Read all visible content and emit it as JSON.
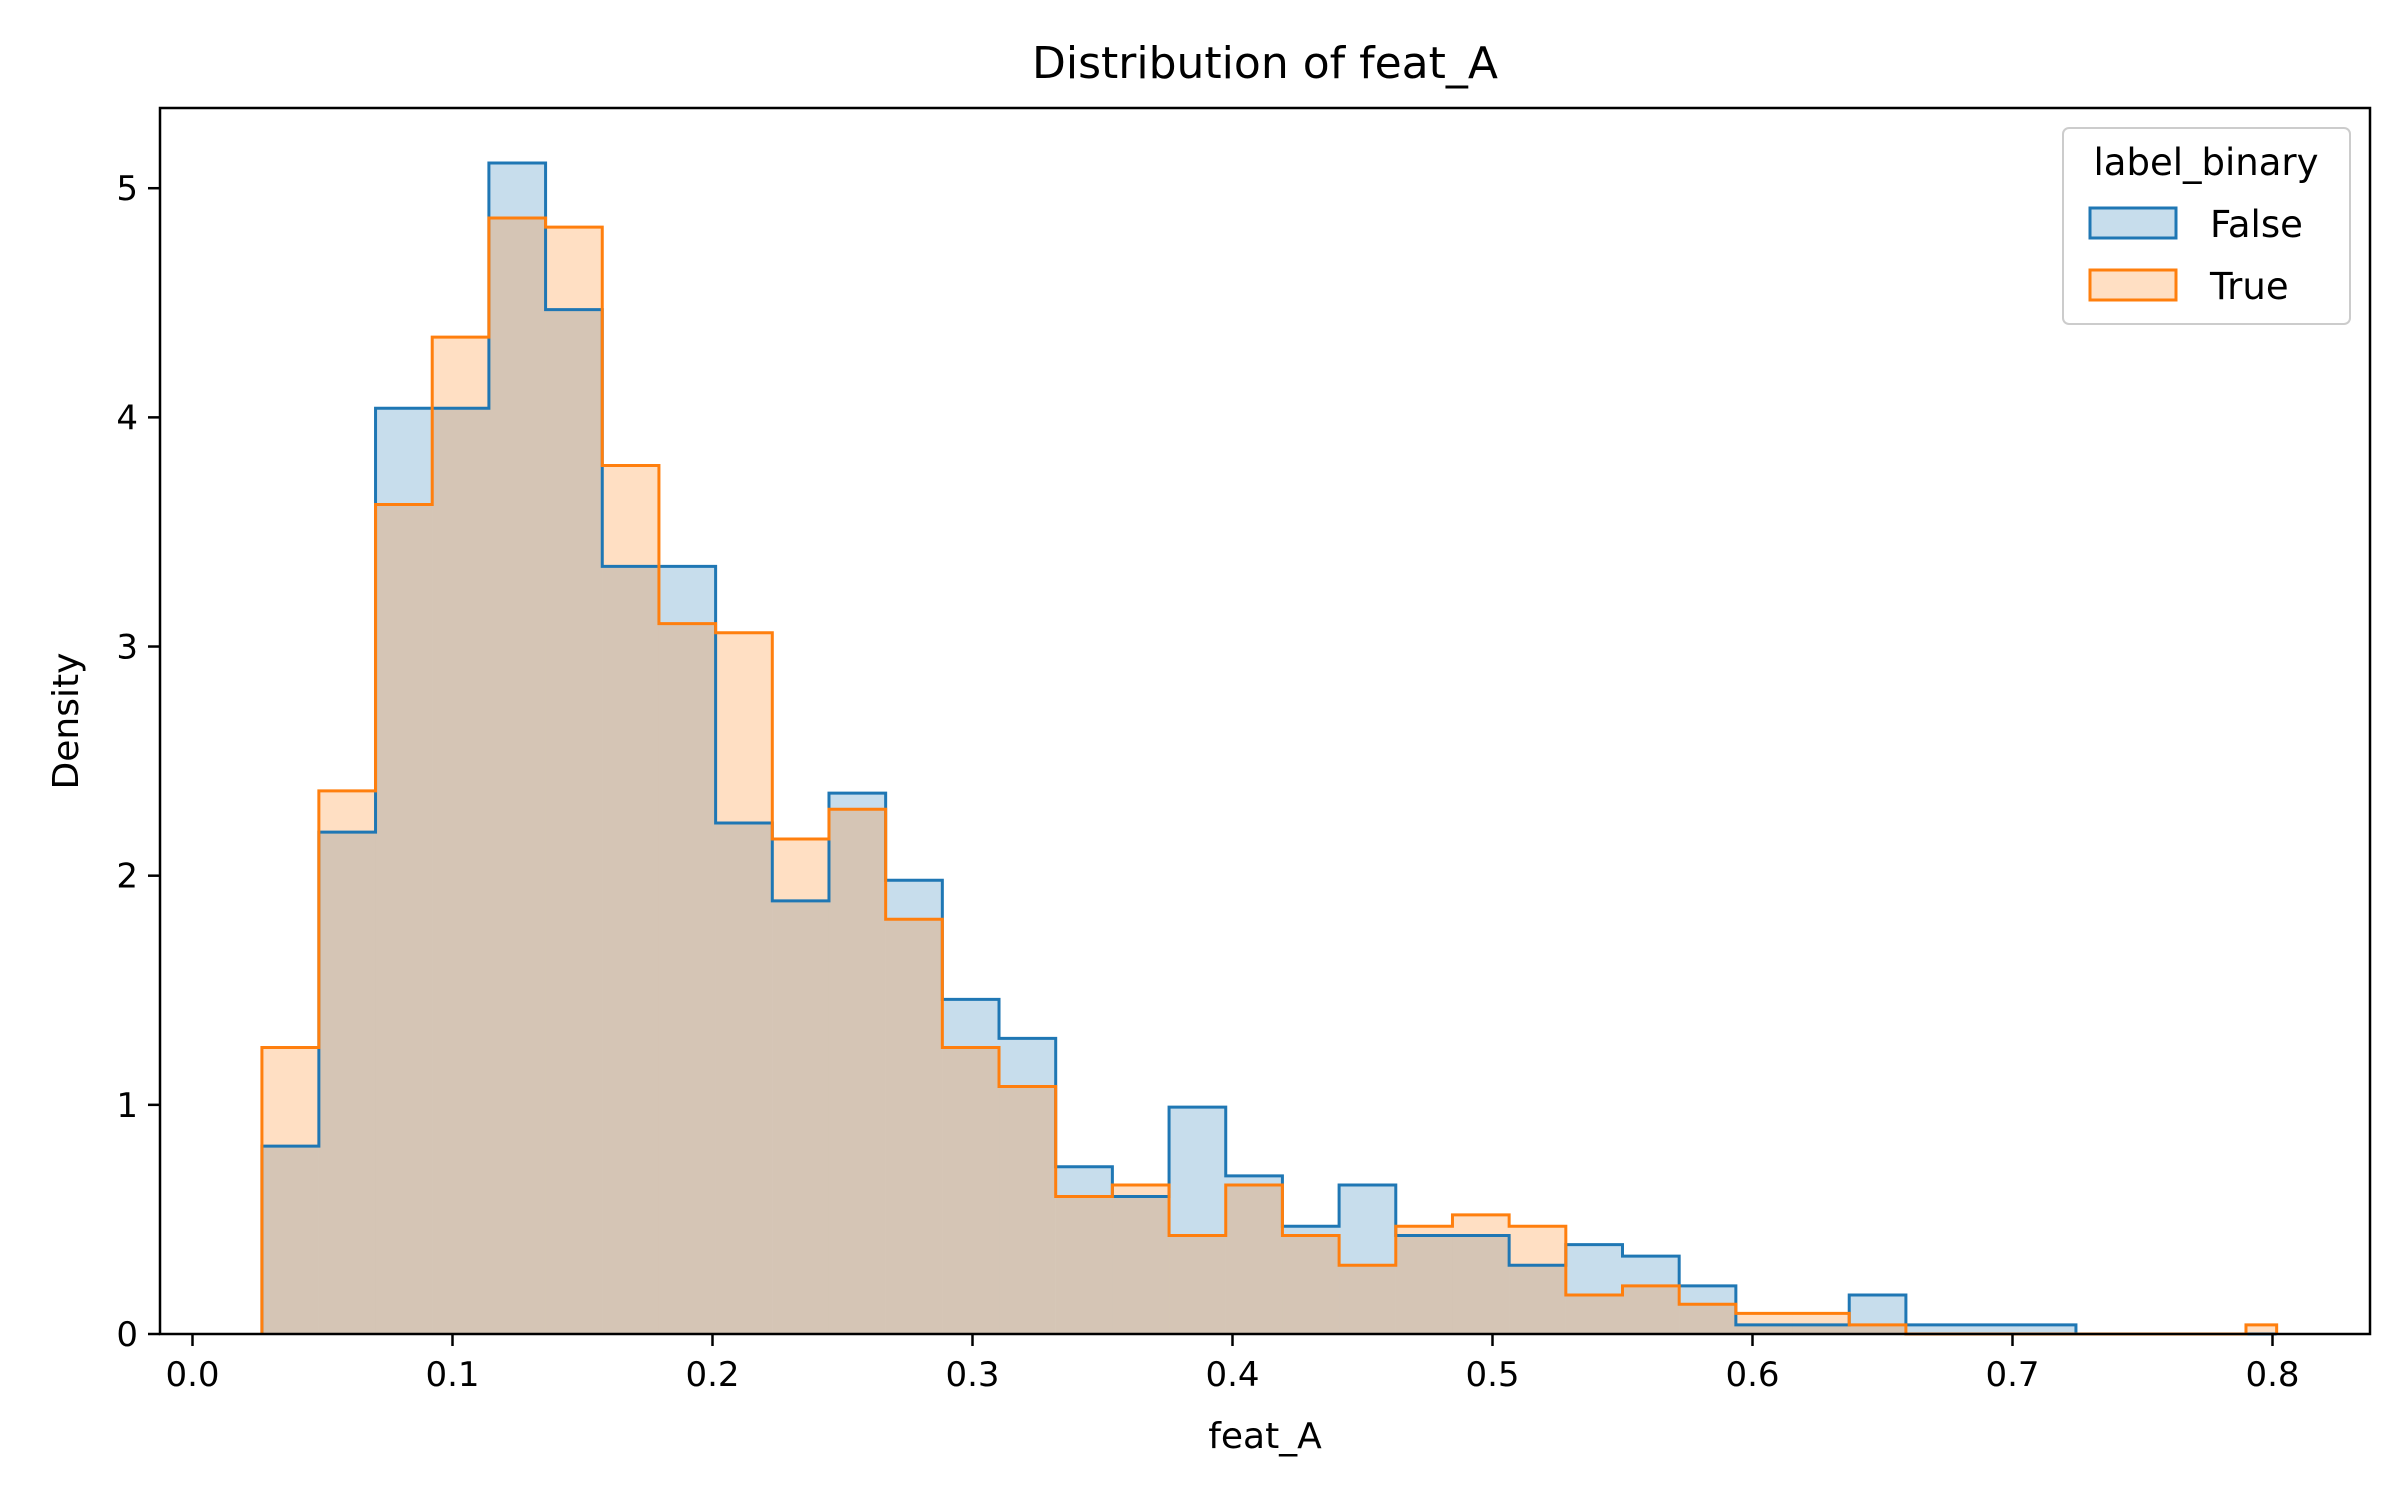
{
  "chart_data": {
    "type": "histogram",
    "title": "Distribution of feat_A",
    "xlabel": "feat_A",
    "ylabel": "Density",
    "xlim": [
      -0.0125,
      0.8375
    ],
    "ylim": [
      0,
      5.35
    ],
    "xticks": [
      0.0,
      0.1,
      0.2,
      0.3,
      0.4,
      0.5,
      0.6,
      0.7,
      0.8
    ],
    "xtick_labels": [
      "0.0",
      "0.1",
      "0.2",
      "0.3",
      "0.4",
      "0.5",
      "0.6",
      "0.7",
      "0.8"
    ],
    "yticks": [
      0,
      1,
      2,
      3,
      4,
      5
    ],
    "ytick_labels": [
      "0",
      "1",
      "2",
      "3",
      "4",
      "5"
    ],
    "bin_edges": [
      0.0267,
      0.0486,
      0.0704,
      0.0922,
      0.114,
      0.1358,
      0.1576,
      0.1794,
      0.2012,
      0.223,
      0.2448,
      0.2666,
      0.2884,
      0.3102,
      0.332,
      0.3538,
      0.3756,
      0.3974,
      0.4192,
      0.441,
      0.4628,
      0.4846,
      0.5064,
      0.5282,
      0.55,
      0.5718,
      0.5936,
      0.6154,
      0.6372,
      0.659,
      0.6808,
      0.7026,
      0.7244,
      0.7462,
      0.768,
      0.7898,
      0.8016
    ],
    "legend": {
      "title": "label_binary",
      "position": "upper right"
    },
    "grid": false,
    "series": [
      {
        "name": "False",
        "stroke": "#1f77b4",
        "fill": "#1f77b4",
        "fill_opacity": 0.25,
        "values": [
          0.82,
          2.19,
          4.04,
          4.04,
          5.11,
          4.47,
          3.35,
          3.35,
          2.23,
          1.89,
          2.36,
          1.98,
          1.46,
          1.29,
          0.73,
          0.6,
          0.99,
          0.69,
          0.47,
          0.65,
          0.43,
          0.43,
          0.3,
          0.39,
          0.34,
          0.21,
          0.04,
          0.04,
          0.17,
          0.04,
          0.04,
          0.04,
          0.0,
          0.0,
          0.0,
          0.0
        ]
      },
      {
        "name": "True",
        "stroke": "#ff7f0e",
        "fill": "#ff7f0e",
        "fill_opacity": 0.25,
        "values": [
          1.25,
          2.37,
          3.62,
          4.35,
          4.87,
          4.83,
          3.79,
          3.1,
          3.06,
          2.16,
          2.29,
          1.81,
          1.25,
          1.08,
          0.6,
          0.65,
          0.43,
          0.65,
          0.43,
          0.3,
          0.47,
          0.52,
          0.47,
          0.17,
          0.21,
          0.13,
          0.09,
          0.09,
          0.04,
          0.0,
          0.0,
          0.0,
          0.0,
          0.0,
          0.0,
          0.04
        ]
      }
    ]
  }
}
